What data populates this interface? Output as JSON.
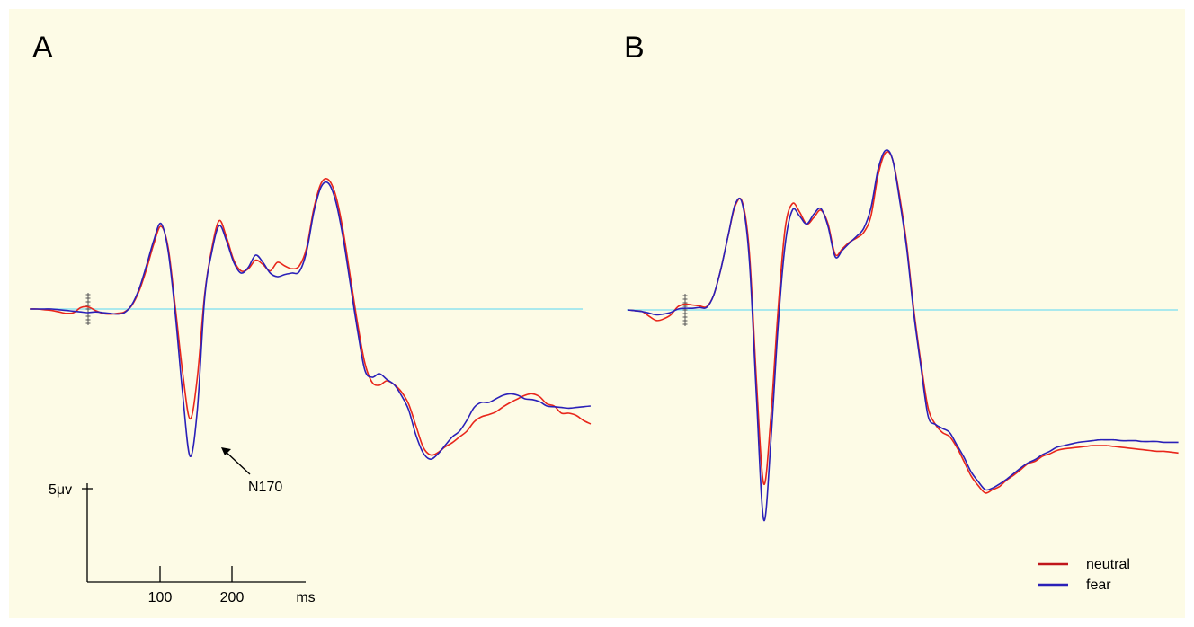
{
  "chart_data": [
    {
      "type": "line",
      "panel_label": "A",
      "xunit": "ms",
      "x_ticks": [
        100,
        200
      ],
      "y_scale_label": "5μv",
      "y_scale_value": 5,
      "annotation": {
        "text": "N170",
        "target_series": "fear",
        "x": 170
      },
      "x": [
        -80,
        -70,
        -60,
        -50,
        -40,
        -30,
        -20,
        -10,
        0,
        10,
        20,
        30,
        40,
        50,
        60,
        70,
        80,
        90,
        100,
        110,
        120,
        130,
        140,
        150,
        160,
        170,
        180,
        190,
        200,
        210,
        220,
        230,
        240,
        250,
        260,
        270,
        280,
        290,
        300,
        310,
        320,
        330,
        340,
        350,
        360,
        370,
        380,
        390,
        400,
        410,
        420,
        430,
        440,
        450,
        460,
        470,
        480,
        490,
        500,
        510,
        520,
        530,
        540,
        550,
        560,
        570,
        580,
        590,
        600,
        610,
        620,
        630,
        640,
        650,
        660,
        670,
        680,
        690
      ],
      "series": [
        {
          "name": "neutral",
          "color": "#e8261b",
          "values": [
            0.0,
            0.0,
            -0.1,
            -0.2,
            -0.4,
            -0.6,
            -0.5,
            0.2,
            0.3,
            -0.2,
            -0.6,
            -0.7,
            -0.6,
            -0.4,
            0.5,
            2.5,
            5.5,
            9.0,
            11.5,
            8.5,
            0.0,
            -9.0,
            -15.3,
            -9.5,
            2.0,
            8.5,
            12.3,
            10.0,
            6.8,
            5.3,
            5.6,
            6.8,
            6.2,
            5.3,
            6.5,
            6.0,
            5.6,
            6.0,
            8.5,
            14.0,
            17.5,
            18.0,
            15.8,
            11.0,
            4.5,
            -2.0,
            -7.5,
            -10.2,
            -10.6,
            -10.0,
            -10.5,
            -11.5,
            -13.2,
            -16.2,
            -19.2,
            -20.3,
            -20.0,
            -19.2,
            -18.6,
            -17.8,
            -17.0,
            -15.7,
            -15.0,
            -14.7,
            -14.3,
            -13.6,
            -13.0,
            -12.5,
            -12.0,
            -11.8,
            -12.2,
            -13.2,
            -13.5,
            -14.5,
            -14.5,
            -14.8,
            -15.5,
            -16.0
          ]
        },
        {
          "name": "fear",
          "color": "#2a20b8",
          "values": [
            0.0,
            0.0,
            0.0,
            0.0,
            -0.1,
            -0.2,
            -0.3,
            -0.4,
            -0.5,
            -0.4,
            -0.5,
            -0.6,
            -0.7,
            -0.5,
            0.6,
            2.8,
            6.0,
            9.5,
            11.9,
            8.0,
            -1.0,
            -12.0,
            -20.5,
            -14.0,
            1.5,
            8.0,
            11.6,
            9.5,
            6.5,
            5.0,
            5.8,
            7.5,
            6.5,
            5.0,
            4.5,
            4.8,
            5.0,
            5.2,
            8.0,
            13.5,
            17.0,
            17.5,
            15.0,
            10.0,
            3.5,
            -3.0,
            -8.5,
            -9.5,
            -9.0,
            -9.8,
            -10.5,
            -12.0,
            -14.0,
            -17.5,
            -20.0,
            -20.9,
            -20.2,
            -19.0,
            -17.8,
            -17.0,
            -15.5,
            -13.7,
            -13.0,
            -13.0,
            -12.5,
            -12.0,
            -11.8,
            -12.0,
            -12.5,
            -12.6,
            -12.9,
            -13.5,
            -13.6,
            -13.7,
            -13.8,
            -13.7,
            -13.6,
            -13.5
          ]
        }
      ]
    },
    {
      "type": "line",
      "panel_label": "B",
      "xunit": "ms",
      "x": [
        -80,
        -70,
        -60,
        -50,
        -40,
        -30,
        -20,
        -10,
        0,
        10,
        20,
        30,
        40,
        50,
        60,
        70,
        80,
        90,
        100,
        110,
        120,
        130,
        140,
        150,
        160,
        170,
        180,
        190,
        200,
        210,
        220,
        230,
        240,
        250,
        260,
        270,
        280,
        290,
        300,
        310,
        320,
        330,
        340,
        350,
        360,
        370,
        380,
        390,
        400,
        410,
        420,
        430,
        440,
        450,
        460,
        470,
        480,
        490,
        500,
        510,
        520,
        530,
        540,
        550,
        560,
        570,
        580,
        590,
        600,
        610,
        620,
        630,
        640,
        650,
        660,
        670,
        680,
        690
      ],
      "series": [
        {
          "name": "neutral",
          "color": "#e8261b",
          "values": [
            0.0,
            -0.1,
            -0.2,
            -0.8,
            -1.3,
            -1.1,
            -0.6,
            0.4,
            0.7,
            0.6,
            0.5,
            0.4,
            1.8,
            5.0,
            9.0,
            12.7,
            13.2,
            7.0,
            -9.0,
            -21.3,
            -13.0,
            0.0,
            10.0,
            13.0,
            12.0,
            10.5,
            11.3,
            12.2,
            10.5,
            6.8,
            7.5,
            8.3,
            8.8,
            9.5,
            11.5,
            16.5,
            19.2,
            18.5,
            14.0,
            8.0,
            0.0,
            -6.5,
            -12.0,
            -14.0,
            -15.0,
            -15.5,
            -16.8,
            -18.5,
            -20.3,
            -21.5,
            -22.4,
            -22.0,
            -21.6,
            -20.8,
            -20.2,
            -19.5,
            -18.8,
            -18.5,
            -17.9,
            -17.6,
            -17.2,
            -17.0,
            -16.9,
            -16.8,
            -16.7,
            -16.6,
            -16.6,
            -16.6,
            -16.7,
            -16.8,
            -16.9,
            -17.0,
            -17.1,
            -17.2,
            -17.3,
            -17.3,
            -17.4,
            -17.5
          ]
        },
        {
          "name": "fear",
          "color": "#2a20b8",
          "values": [
            0.0,
            -0.1,
            -0.2,
            -0.4,
            -0.6,
            -0.5,
            -0.3,
            0.1,
            0.2,
            0.2,
            0.3,
            0.3,
            1.8,
            5.0,
            9.0,
            12.9,
            13.0,
            6.0,
            -11.0,
            -25.7,
            -16.0,
            -2.0,
            8.0,
            12.2,
            11.5,
            10.5,
            11.7,
            12.4,
            10.2,
            6.5,
            7.3,
            8.2,
            9.0,
            10.0,
            12.5,
            17.2,
            19.5,
            18.5,
            13.5,
            7.5,
            -0.5,
            -7.0,
            -13.0,
            -14.0,
            -14.5,
            -15.0,
            -16.5,
            -18.0,
            -19.8,
            -21.0,
            -22.0,
            -21.8,
            -21.3,
            -20.7,
            -20.0,
            -19.3,
            -18.7,
            -18.3,
            -17.7,
            -17.3,
            -16.8,
            -16.6,
            -16.4,
            -16.2,
            -16.1,
            -16.0,
            -15.9,
            -15.9,
            -15.9,
            -16.0,
            -16.0,
            -16.0,
            -16.1,
            -16.1,
            -16.1,
            -16.2,
            -16.2,
            -16.2
          ]
        }
      ]
    }
  ],
  "legend": [
    {
      "label": "neutral",
      "color": "#e8261b"
    },
    {
      "label": "fear",
      "color": "#2a20b8"
    }
  ],
  "baseline_color": "#8fe3ef",
  "background_color": "#fdfbe6"
}
